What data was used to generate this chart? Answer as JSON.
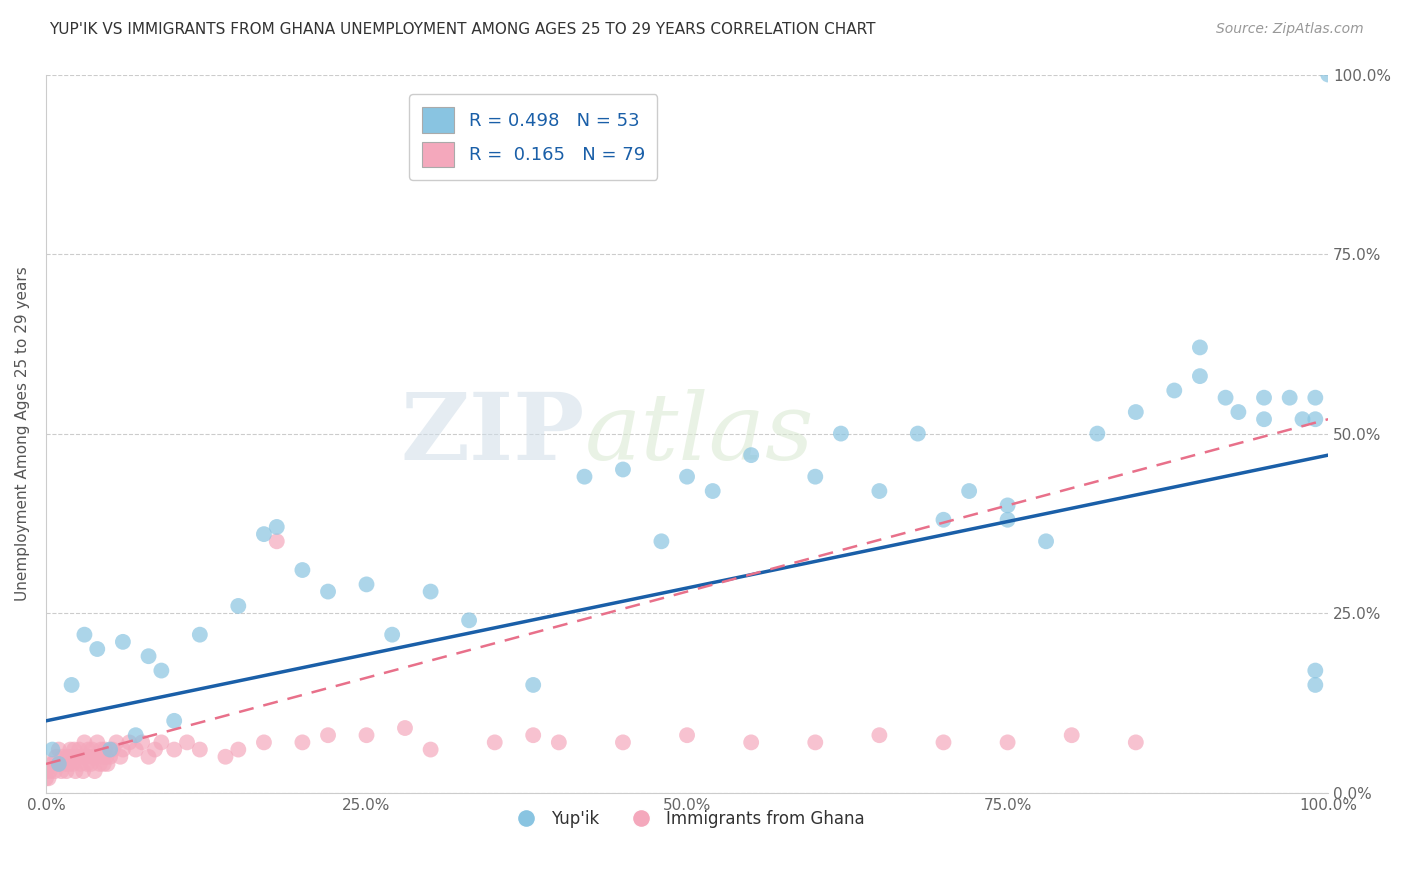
{
  "title": "YUP'IK VS IMMIGRANTS FROM GHANA UNEMPLOYMENT AMONG AGES 25 TO 29 YEARS CORRELATION CHART",
  "source": "Source: ZipAtlas.com",
  "ylabel": "Unemployment Among Ages 25 to 29 years",
  "xlim": [
    0.0,
    1.0
  ],
  "ylim": [
    0.0,
    1.0
  ],
  "xticks": [
    0.0,
    0.25,
    0.5,
    0.75,
    1.0
  ],
  "xticklabels": [
    "0.0%",
    "25.0%",
    "50.0%",
    "75.0%",
    "100.0%"
  ],
  "ytick_positions": [
    0.0,
    0.25,
    0.5,
    0.75,
    1.0
  ],
  "ytick_labels_right": [
    "0.0%",
    "25.0%",
    "50.0%",
    "75.0%",
    "100.0%"
  ],
  "watermark_zip": "ZIP",
  "watermark_atlas": "atlas",
  "blue_color": "#89c4e1",
  "pink_color": "#f4a8bc",
  "blue_line_color": "#1a5fa8",
  "pink_line_color": "#e8708a",
  "legend_label1": "Yup'ik",
  "legend_label2": "Immigrants from Ghana",
  "blue_scatter_x": [
    0.005,
    0.01,
    0.02,
    0.03,
    0.04,
    0.05,
    0.06,
    0.07,
    0.08,
    0.09,
    0.1,
    0.12,
    0.15,
    0.17,
    0.18,
    0.2,
    0.22,
    0.25,
    0.27,
    0.3,
    0.33,
    0.38,
    0.42,
    0.45,
    0.48,
    0.5,
    0.52,
    0.55,
    0.6,
    0.62,
    0.65,
    0.68,
    0.7,
    0.72,
    0.75,
    0.75,
    0.78,
    0.82,
    0.85,
    0.88,
    0.9,
    0.9,
    0.92,
    0.93,
    0.95,
    0.95,
    0.97,
    0.98,
    0.99,
    0.99,
    0.99,
    0.99,
    1.0
  ],
  "blue_scatter_y": [
    0.06,
    0.04,
    0.15,
    0.22,
    0.2,
    0.06,
    0.21,
    0.08,
    0.19,
    0.17,
    0.1,
    0.22,
    0.26,
    0.36,
    0.37,
    0.31,
    0.28,
    0.29,
    0.22,
    0.28,
    0.24,
    0.15,
    0.44,
    0.45,
    0.35,
    0.44,
    0.42,
    0.47,
    0.44,
    0.5,
    0.42,
    0.5,
    0.38,
    0.42,
    0.4,
    0.38,
    0.35,
    0.5,
    0.53,
    0.56,
    0.58,
    0.62,
    0.55,
    0.53,
    0.52,
    0.55,
    0.55,
    0.52,
    0.17,
    0.15,
    0.55,
    0.52,
    1.0
  ],
  "pink_scatter_x": [
    0.0,
    0.0,
    0.0,
    0.002,
    0.003,
    0.005,
    0.007,
    0.008,
    0.01,
    0.01,
    0.012,
    0.013,
    0.015,
    0.016,
    0.017,
    0.018,
    0.019,
    0.02,
    0.021,
    0.022,
    0.023,
    0.025,
    0.026,
    0.027,
    0.028,
    0.029,
    0.03,
    0.031,
    0.032,
    0.033,
    0.034,
    0.035,
    0.036,
    0.037,
    0.038,
    0.04,
    0.041,
    0.042,
    0.043,
    0.044,
    0.045,
    0.046,
    0.047,
    0.048,
    0.05,
    0.052,
    0.055,
    0.058,
    0.06,
    0.065,
    0.07,
    0.075,
    0.08,
    0.085,
    0.09,
    0.1,
    0.11,
    0.12,
    0.14,
    0.15,
    0.17,
    0.18,
    0.2,
    0.22,
    0.25,
    0.28,
    0.3,
    0.35,
    0.38,
    0.4,
    0.45,
    0.5,
    0.55,
    0.6,
    0.65,
    0.7,
    0.75,
    0.8,
    0.85
  ],
  "pink_scatter_y": [
    0.02,
    0.03,
    0.04,
    0.02,
    0.03,
    0.04,
    0.03,
    0.05,
    0.04,
    0.06,
    0.03,
    0.05,
    0.04,
    0.03,
    0.05,
    0.04,
    0.06,
    0.05,
    0.04,
    0.06,
    0.03,
    0.05,
    0.06,
    0.04,
    0.05,
    0.03,
    0.07,
    0.05,
    0.04,
    0.06,
    0.05,
    0.04,
    0.06,
    0.05,
    0.03,
    0.07,
    0.05,
    0.04,
    0.06,
    0.05,
    0.04,
    0.06,
    0.05,
    0.04,
    0.05,
    0.06,
    0.07,
    0.05,
    0.06,
    0.07,
    0.06,
    0.07,
    0.05,
    0.06,
    0.07,
    0.06,
    0.07,
    0.06,
    0.05,
    0.06,
    0.07,
    0.35,
    0.07,
    0.08,
    0.08,
    0.09,
    0.06,
    0.07,
    0.08,
    0.07,
    0.07,
    0.08,
    0.07,
    0.07,
    0.08,
    0.07,
    0.07,
    0.08,
    0.07
  ],
  "blue_line_x0": 0.0,
  "blue_line_y0": 0.1,
  "blue_line_x1": 1.0,
  "blue_line_y1": 0.47,
  "pink_line_x0": 0.0,
  "pink_line_y0": 0.04,
  "pink_line_x1": 1.0,
  "pink_line_y1": 0.52
}
